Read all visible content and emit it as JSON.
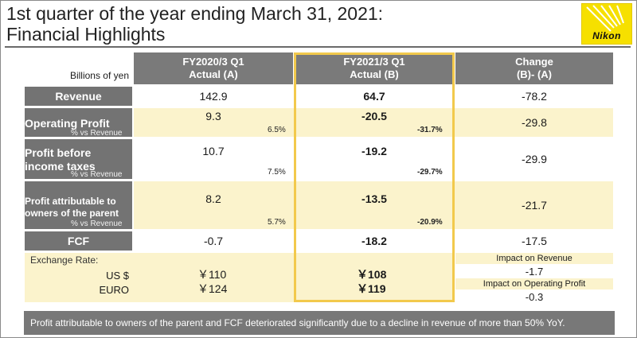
{
  "header": {
    "title_line1": "1st quarter of the year ending March 31, 2021:",
    "title_line2": "Financial Highlights",
    "logo_text": "Nikon",
    "units": "Billions of yen"
  },
  "columns": {
    "col_a_line1": "FY2020/3 Q1",
    "col_a_line2": "Actual (A)",
    "col_b_line1": "FY2021/3 Q1",
    "col_b_line2": "Actual (B)",
    "col_c_line1": "Change",
    "col_c_line2": "(B)- (A)"
  },
  "rows": {
    "revenue": {
      "label": "Revenue",
      "a": "142.9",
      "b": "64.7",
      "change": "-78.2"
    },
    "operating_profit": {
      "label": "Operating Profit",
      "sub": "% vs Revenue",
      "a": "9.3",
      "a_pct": "6.5%",
      "b": "-20.5",
      "b_pct": "-31.7%",
      "change": "-29.8"
    },
    "profit_before_tax": {
      "label_line1": "Profit before",
      "label_line2": "income taxes",
      "sub": "% vs Revenue",
      "a": "10.7",
      "a_pct": "7.5%",
      "b": "-19.2",
      "b_pct": "-29.7%",
      "change": "-29.9"
    },
    "profit_owners": {
      "label_line1": "Profit attributable to",
      "label_line2": "owners of the parent",
      "sub": "% vs Revenue",
      "a": "8.2",
      "a_pct": "5.7%",
      "b": "-13.5",
      "b_pct": "-20.9%",
      "change": "-21.7"
    },
    "fcf": {
      "label": "FCF",
      "a": "-0.7",
      "b": "-18.2",
      "change": "-17.5"
    }
  },
  "exchange": {
    "label": "Exchange Rate:",
    "usd_label": "US $",
    "euro_label": "EURO",
    "usd_a": "￥110",
    "usd_b": "￥108",
    "euro_a": "￥124",
    "euro_b": "￥119",
    "impact_revenue_label": "Impact on Revenue",
    "impact_revenue_value": "-1.7",
    "impact_op_label": "Impact on Operating Profit",
    "impact_op_value": "-0.3"
  },
  "footer": {
    "note": "Profit attributable to owners of the parent and FCF deteriorated significantly due to a decline in revenue of more than 50% YoY."
  },
  "colors": {
    "header_gray": "#7a7a7a",
    "band_yellow": "#fbf3cc",
    "highlight_gold": "#f2c94c",
    "logo_yellow": "#f6e000"
  }
}
